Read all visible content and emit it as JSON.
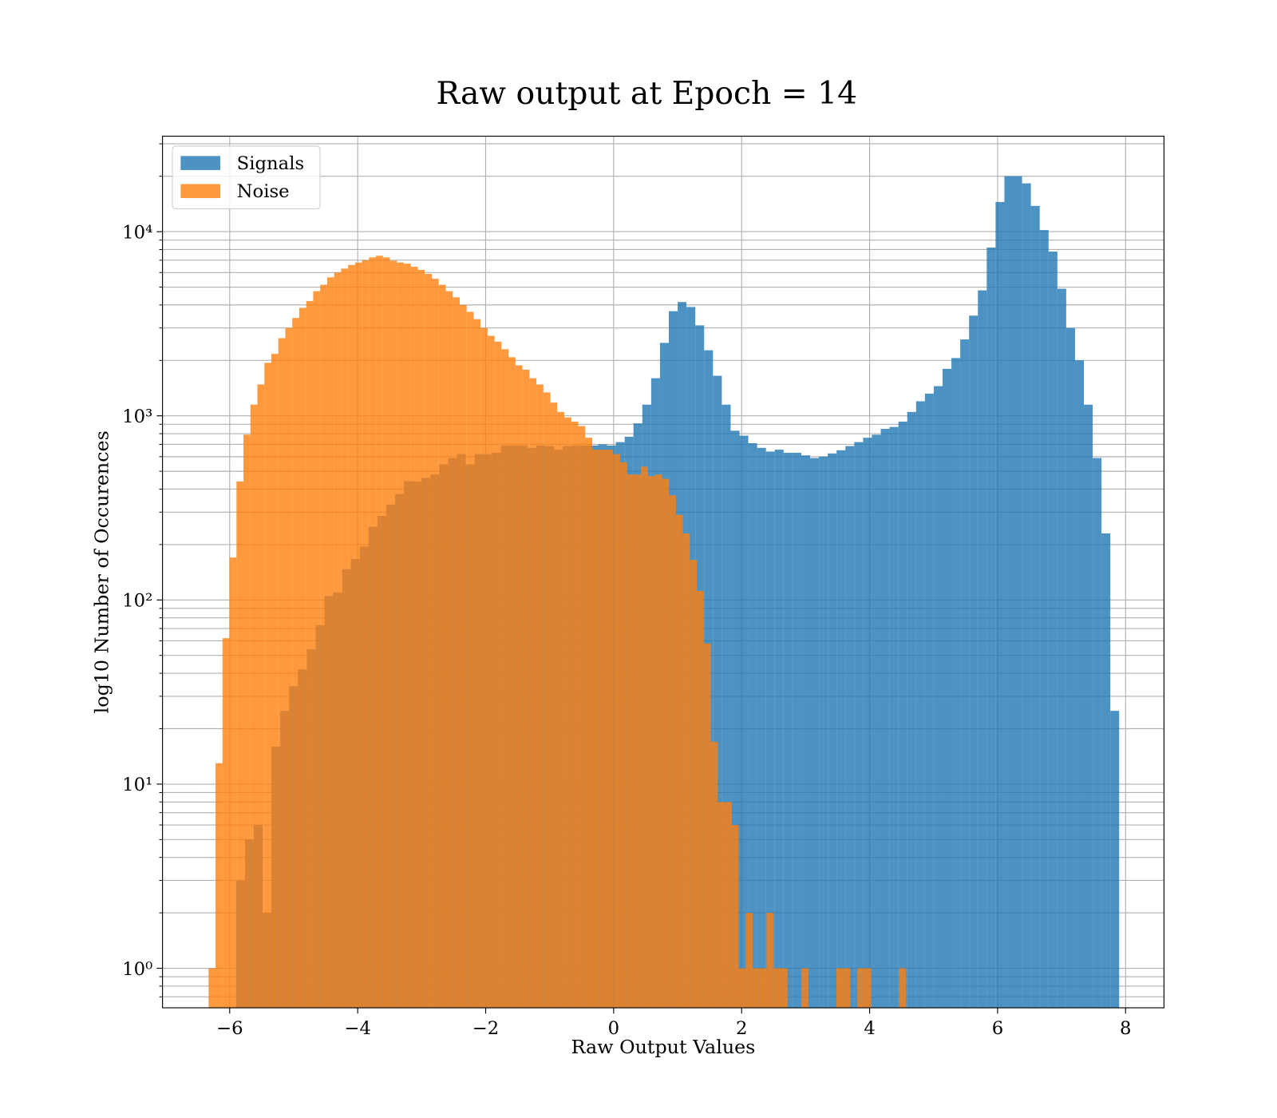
{
  "chart_data": {
    "type": "histogram",
    "title": "Raw output at Epoch = 14",
    "xlabel": "Raw Output Values",
    "ylabel": "log10 Number of Occurences",
    "xlim": [
      -7.05,
      8.6
    ],
    "ylim": [
      0.61,
      33000
    ],
    "yscale": "log",
    "grid": true,
    "alpha": 0.8,
    "legend": "upper left",
    "xticks": [
      {
        "value": -6,
        "label": "−6"
      },
      {
        "value": -4,
        "label": "−4"
      },
      {
        "value": -2,
        "label": "−2"
      },
      0,
      2,
      4,
      6,
      8
    ],
    "yticks": [
      {
        "value": 1,
        "label": "10⁰"
      },
      {
        "value": 10,
        "label": "10¹"
      },
      {
        "value": 100,
        "label": "10²"
      },
      {
        "value": 1000,
        "label": "10³"
      },
      {
        "value": 10000,
        "label": "10⁴"
      }
    ],
    "yminorticks": [
      0.7,
      0.8,
      0.9,
      2,
      3,
      4,
      5,
      6,
      7,
      8,
      9,
      20,
      30,
      40,
      50,
      60,
      70,
      80,
      90,
      200,
      300,
      400,
      500,
      600,
      700,
      800,
      900,
      2000,
      3000,
      4000,
      5000,
      6000,
      7000,
      8000,
      9000,
      20000,
      30000
    ],
    "series": [
      {
        "name": "Signals",
        "color": "#1f77b4",
        "bins": [
          -5.9,
          -5.762,
          -5.624,
          -5.486,
          -5.348,
          -5.21,
          -5.072,
          -4.934,
          -4.796,
          -4.658,
          -4.52,
          -4.382,
          -4.244,
          -4.106,
          -3.968,
          -3.83,
          -3.692,
          -3.554,
          -3.416,
          -3.278,
          -3.14,
          -3.002,
          -2.864,
          -2.726,
          -2.588,
          -2.45,
          -2.312,
          -2.174,
          -2.036,
          -1.898,
          -1.76,
          -1.622,
          -1.484,
          -1.346,
          -1.208,
          -1.07,
          -0.932,
          -0.794,
          -0.656,
          -0.518,
          -0.38,
          -0.242,
          -0.104,
          0.034,
          0.172,
          0.31,
          0.448,
          0.586,
          0.724,
          0.862,
          1.0,
          1.138,
          1.276,
          1.414,
          1.552,
          1.69,
          1.828,
          1.966,
          2.104,
          2.242,
          2.38,
          2.518,
          2.656,
          2.794,
          2.932,
          3.07,
          3.208,
          3.346,
          3.484,
          3.622,
          3.76,
          3.898,
          4.036,
          4.174,
          4.312,
          4.45,
          4.588,
          4.726,
          4.864,
          5.002,
          5.14,
          5.278,
          5.416,
          5.554,
          5.692,
          5.83,
          5.968,
          6.106,
          6.244,
          6.382,
          6.52,
          6.658,
          6.796,
          6.934,
          7.072,
          7.21,
          7.348,
          7.486,
          7.624,
          7.762,
          7.9
        ],
        "values": [
          3,
          5,
          6,
          2,
          16,
          25,
          34,
          42,
          54,
          73,
          105,
          110,
          147,
          167,
          195,
          250,
          286,
          330,
          376,
          442,
          440,
          460,
          480,
          545,
          590,
          620,
          545,
          620,
          620,
          630,
          690,
          690,
          690,
          670,
          690,
          685,
          655,
          685,
          690,
          690,
          690,
          700,
          690,
          720,
          770,
          910,
          1150,
          1600,
          2490,
          3700,
          4150,
          3900,
          3100,
          2270,
          1650,
          1150,
          830,
          780,
          710,
          670,
          640,
          655,
          630,
          630,
          610,
          590,
          600,
          625,
          650,
          685,
          720,
          760,
          790,
          850,
          870,
          930,
          1050,
          1200,
          1320,
          1450,
          1800,
          2060,
          2600,
          3500,
          4800,
          8200,
          14500,
          20000,
          20000,
          18300,
          13800,
          10200,
          7800,
          4900,
          3000,
          2000,
          1150,
          590,
          230,
          25
        ]
      },
      {
        "name": "Noise",
        "color": "#ff7f0e",
        "bins": [
          -6.33,
          -6.221,
          -6.112,
          -6.003,
          -5.894,
          -5.785,
          -5.676,
          -5.567,
          -5.458,
          -5.349,
          -5.24,
          -5.131,
          -5.022,
          -4.913,
          -4.804,
          -4.695,
          -4.586,
          -4.477,
          -4.368,
          -4.259,
          -4.15,
          -4.041,
          -3.932,
          -3.823,
          -3.714,
          -3.605,
          -3.496,
          -3.387,
          -3.278,
          -3.169,
          -3.06,
          -2.951,
          -2.842,
          -2.733,
          -2.624,
          -2.515,
          -2.406,
          -2.297,
          -2.188,
          -2.079,
          -1.97,
          -1.861,
          -1.752,
          -1.643,
          -1.534,
          -1.425,
          -1.316,
          -1.207,
          -1.098,
          -0.989,
          -0.88,
          -0.771,
          -0.662,
          -0.553,
          -0.444,
          -0.335,
          -0.226,
          -0.117,
          -0.008,
          0.101,
          0.21,
          0.319,
          0.428,
          0.537,
          0.646,
          0.755,
          0.864,
          0.973,
          1.082,
          1.191,
          1.3,
          1.409,
          1.518,
          1.627,
          1.736,
          1.845,
          1.954,
          2.063,
          2.172,
          2.281,
          2.39,
          2.499,
          2.608,
          2.717,
          2.826,
          2.935,
          3.044,
          3.153,
          3.262,
          3.371,
          3.48,
          3.589,
          3.698,
          3.807,
          3.916,
          4.025,
          4.134,
          4.243,
          4.352,
          4.461,
          4.57
        ],
        "values": [
          1,
          13,
          62,
          170,
          440,
          790,
          1150,
          1480,
          1940,
          2170,
          2640,
          3000,
          3400,
          3860,
          4200,
          4750,
          5150,
          5650,
          6000,
          6300,
          6600,
          6800,
          7000,
          7250,
          7400,
          7250,
          6950,
          6800,
          6700,
          6450,
          6200,
          5900,
          5550,
          5150,
          4750,
          4400,
          4000,
          3670,
          3350,
          3000,
          2720,
          2530,
          2300,
          2080,
          1880,
          1780,
          1600,
          1480,
          1340,
          1180,
          1050,
          980,
          930,
          880,
          760,
          655,
          655,
          655,
          620,
          560,
          480,
          480,
          530,
          470,
          480,
          455,
          370,
          290,
          230,
          165,
          112,
          58,
          17,
          8,
          8,
          6,
          1,
          2,
          1,
          1,
          2,
          1,
          1,
          0,
          0,
          1,
          0,
          0,
          0,
          0,
          1,
          1,
          0,
          1,
          1,
          0,
          0,
          0,
          0,
          1
        ]
      }
    ]
  }
}
